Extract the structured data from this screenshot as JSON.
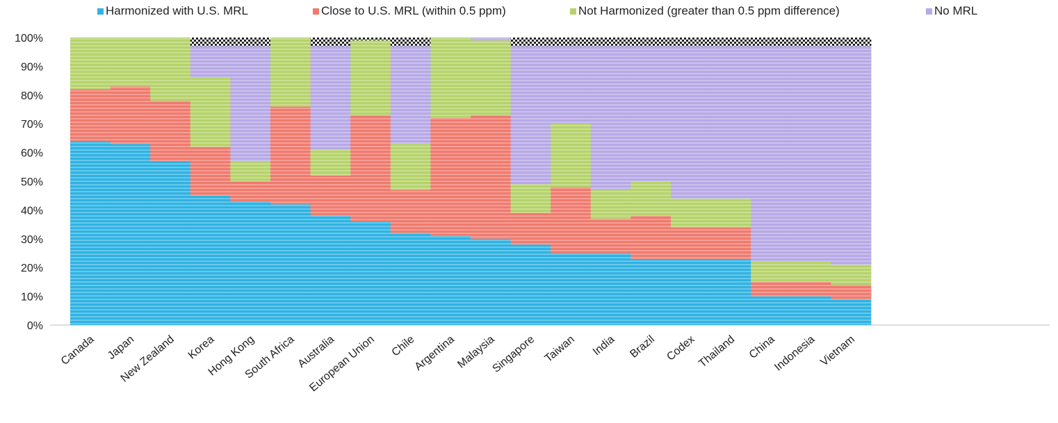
{
  "chart_data": {
    "type": "bar",
    "stacked": true,
    "percent_stacked": true,
    "title": "",
    "xlabel": "",
    "ylabel": "",
    "ylim": [
      0,
      100
    ],
    "y_ticks": [
      "0%",
      "10%",
      "20%",
      "30%",
      "40%",
      "50%",
      "60%",
      "70%",
      "80%",
      "90%",
      "100%"
    ],
    "legend_position": "top",
    "grid": false,
    "categories": [
      "Canada",
      "Japan",
      "New Zealand",
      "Korea",
      "Hong Kong",
      "South Africa",
      "Australia",
      "European Union",
      "Chile",
      "Argentina",
      "Malaysia",
      "Singapore",
      "Taiwan",
      "India",
      "Brazil",
      "Codex",
      "Thailand",
      "China",
      "Indonesia",
      "Vietnam"
    ],
    "series": [
      {
        "name": "Harmonized with U.S. MRL",
        "color": "#2fb3e3",
        "values": [
          64,
          63,
          57,
          45,
          43,
          42,
          38,
          36,
          32,
          31,
          30,
          28,
          25,
          25,
          23,
          23,
          23,
          10,
          10,
          9
        ]
      },
      {
        "name": "Close to U.S. MRL (within 0.5 ppm)",
        "color": "#f07a6e",
        "values": [
          18,
          20,
          21,
          17,
          7,
          34,
          14,
          37,
          15,
          41,
          43,
          11,
          23,
          12,
          15,
          11,
          11,
          5,
          5,
          5
        ]
      },
      {
        "name": "Not Harmonized (greater than 0.5 ppm difference)",
        "color": "#b5d36a",
        "values": [
          18,
          17,
          22,
          24,
          7,
          24,
          9,
          26,
          16,
          28,
          26,
          10,
          22,
          10,
          12,
          10,
          10,
          7,
          7,
          7
        ]
      },
      {
        "name": "No MRL",
        "color": "#b7a9e6",
        "values": [
          0,
          0,
          0,
          11,
          40,
          0,
          36,
          0,
          34,
          0,
          1,
          48,
          27,
          50,
          47,
          53,
          53,
          75,
          75,
          76
        ]
      },
      {
        "name": "",
        "color": "#333333",
        "values": [
          0,
          0,
          0,
          3,
          3,
          0,
          3,
          1,
          3,
          0,
          0,
          3,
          3,
          3,
          3,
          3,
          3,
          3,
          3,
          3
        ]
      }
    ]
  }
}
